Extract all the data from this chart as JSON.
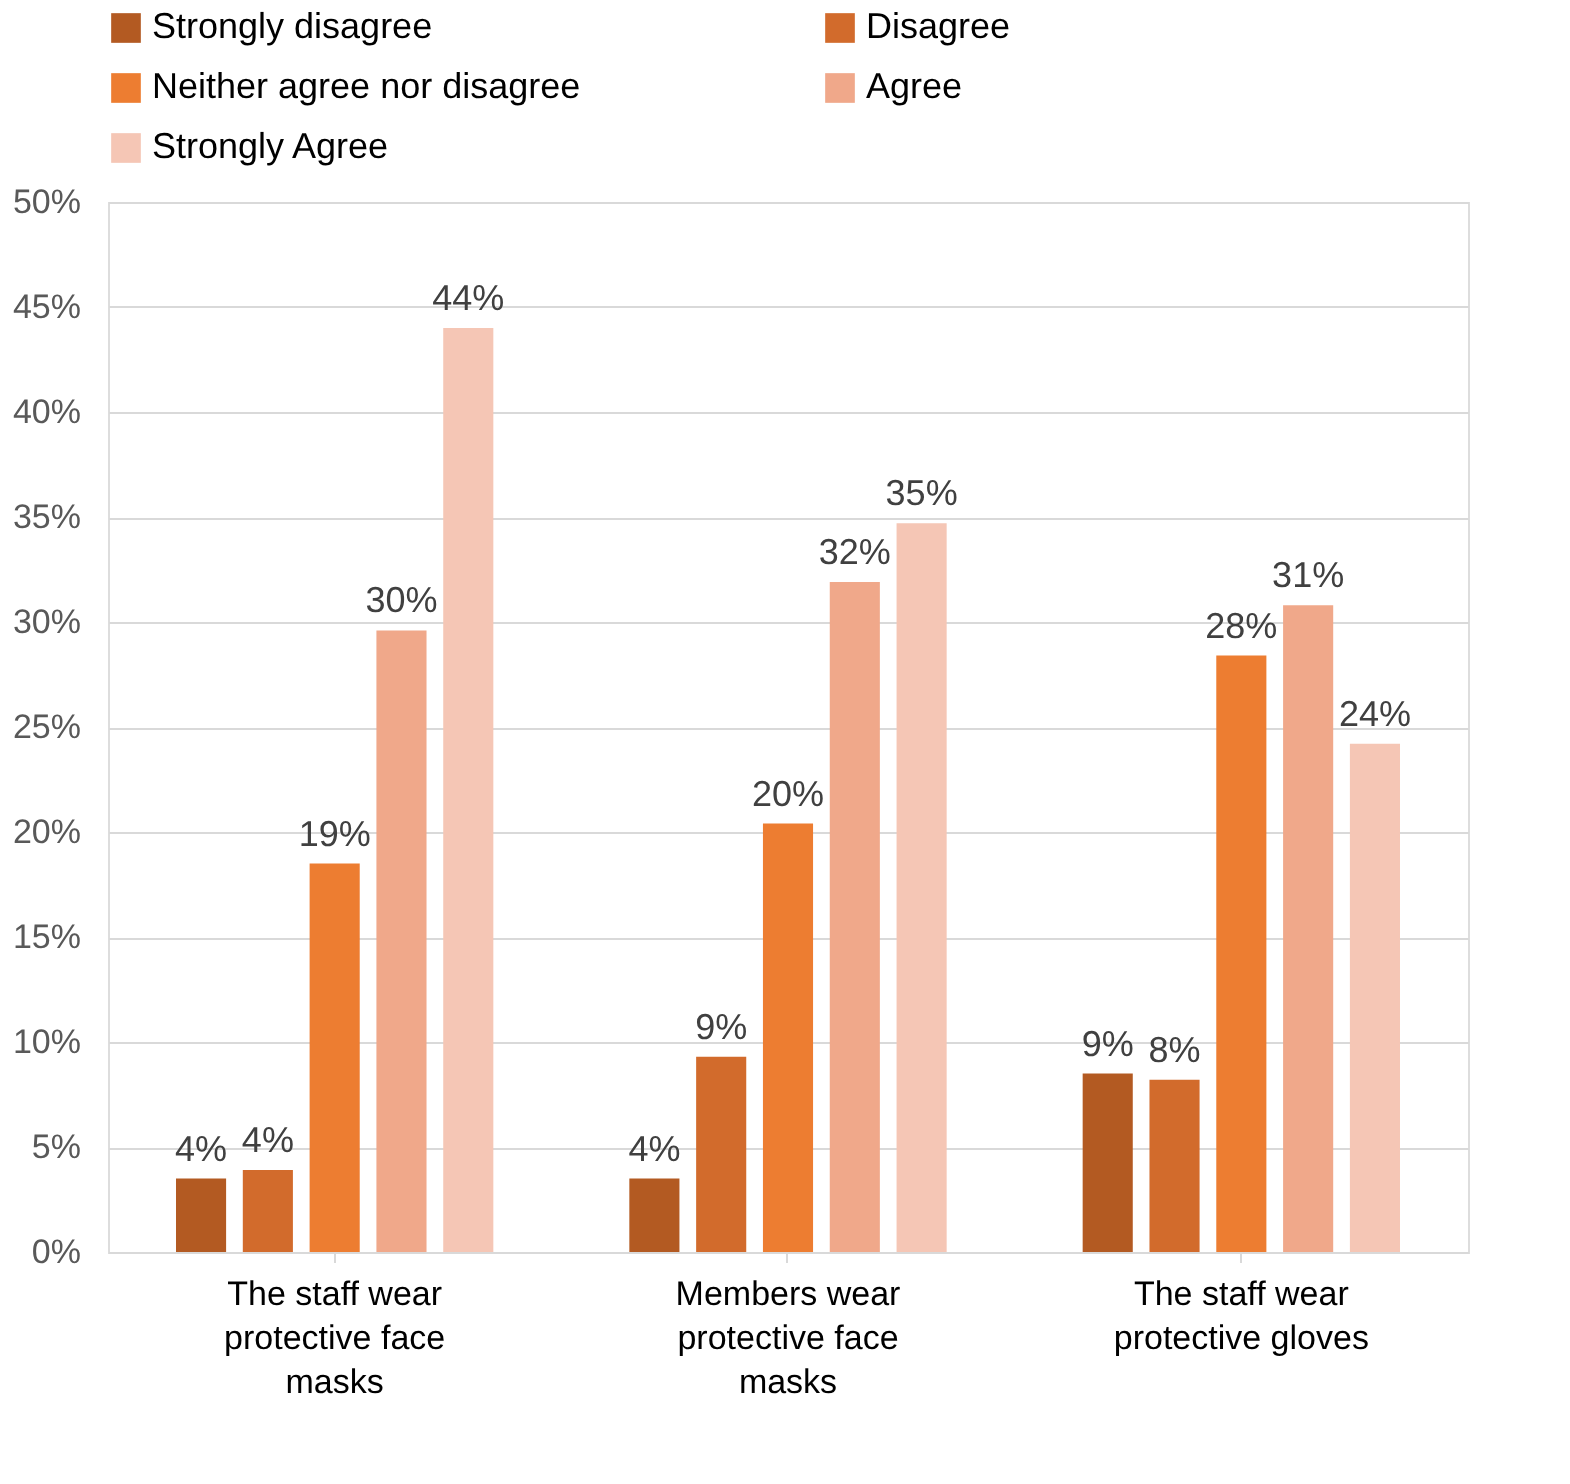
{
  "chart_data": {
    "type": "bar",
    "categories": [
      "The staff wear protective face masks",
      "Members wear protective face masks",
      "The staff wear protective gloves"
    ],
    "series": [
      {
        "name": "Strongly disagree",
        "color": "#b35a22",
        "values": [
          3.5,
          3.5,
          8.5
        ],
        "value_labels": [
          "4%",
          "4%",
          "9%"
        ]
      },
      {
        "name": "Disagree",
        "color": "#d26b2c",
        "values": [
          3.9,
          9.3,
          8.2
        ],
        "value_labels": [
          "4%",
          "9%",
          "8%"
        ]
      },
      {
        "name": "Neither agree nor disagree",
        "color": "#ed7d31",
        "values": [
          18.5,
          20.4,
          28.4
        ],
        "value_labels": [
          "19%",
          "20%",
          "28%"
        ]
      },
      {
        "name": "Agree",
        "color": "#f0a88a",
        "values": [
          29.6,
          31.9,
          30.8
        ],
        "value_labels": [
          "30%",
          "32%",
          "31%"
        ]
      },
      {
        "name": "Strongly Agree",
        "color": "#f5c6b5",
        "values": [
          44.0,
          34.7,
          24.2
        ],
        "value_labels": [
          "44%",
          "35%",
          "24%"
        ]
      }
    ],
    "ylim": [
      0,
      50
    ],
    "yticks": [
      {
        "value": 0,
        "label": "0%"
      },
      {
        "value": 5,
        "label": "5%"
      },
      {
        "value": 10,
        "label": "10%"
      },
      {
        "value": 15,
        "label": "15%"
      },
      {
        "value": 20,
        "label": "20%"
      },
      {
        "value": 25,
        "label": "25%"
      },
      {
        "value": 30,
        "label": "30%"
      },
      {
        "value": 35,
        "label": "35%"
      },
      {
        "value": 40,
        "label": "40%"
      },
      {
        "value": 45,
        "label": "45%"
      },
      {
        "value": 50,
        "label": "50%"
      }
    ],
    "grid": "y",
    "legend": "top"
  }
}
